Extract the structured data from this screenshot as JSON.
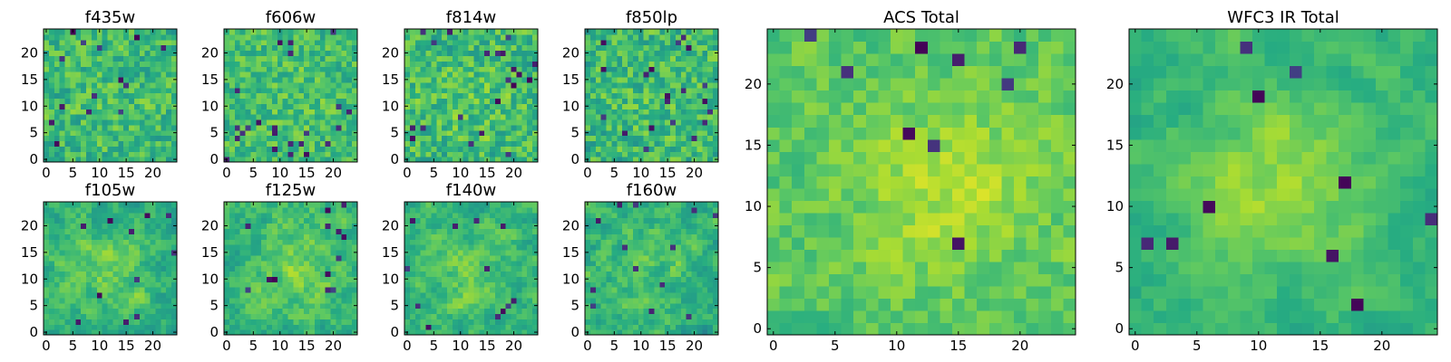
{
  "colormap": {
    "name": "viridis",
    "stops": [
      "#440154",
      "#472c7a",
      "#3b518b",
      "#2c718e",
      "#21908d",
      "#27ad81",
      "#5cc863",
      "#aadc32",
      "#fde725"
    ]
  },
  "chart_data": [
    {
      "type": "heatmap",
      "title": "f435w",
      "x_range": [
        0,
        24
      ],
      "y_range": [
        0,
        24
      ],
      "grid_size": 25,
      "mean": 0.66,
      "spread": 0.17,
      "smooth": 0.15,
      "outlier_rate": 0.035,
      "seed": 11,
      "blob": {
        "center": [
          12,
          11
        ],
        "sigma": 7,
        "amplitude": 0.04
      },
      "xticks": [
        0,
        5,
        10,
        15,
        20
      ],
      "yticks": [
        0,
        5,
        10,
        15,
        20
      ]
    },
    {
      "type": "heatmap",
      "title": "f606w",
      "x_range": [
        0,
        24
      ],
      "y_range": [
        0,
        24
      ],
      "grid_size": 25,
      "mean": 0.68,
      "spread": 0.16,
      "smooth": 0.15,
      "outlier_rate": 0.03,
      "seed": 23,
      "blob": {
        "center": [
          12,
          11
        ],
        "sigma": 7,
        "amplitude": 0.04
      },
      "xticks": [
        0,
        5,
        10,
        15,
        20
      ],
      "yticks": [
        0,
        5,
        10,
        15,
        20
      ]
    },
    {
      "type": "heatmap",
      "title": "f814w",
      "x_range": [
        0,
        24
      ],
      "y_range": [
        0,
        24
      ],
      "grid_size": 25,
      "mean": 0.67,
      "spread": 0.18,
      "smooth": 0.15,
      "outlier_rate": 0.035,
      "seed": 37,
      "blob": {
        "center": [
          12,
          11
        ],
        "sigma": 7,
        "amplitude": 0.05
      },
      "xticks": [
        0,
        5,
        10,
        15,
        20
      ],
      "yticks": [
        0,
        5,
        10,
        15,
        20
      ]
    },
    {
      "type": "heatmap",
      "title": "f850lp",
      "x_range": [
        0,
        24
      ],
      "y_range": [
        0,
        24
      ],
      "grid_size": 25,
      "mean": 0.66,
      "spread": 0.18,
      "smooth": 0.15,
      "outlier_rate": 0.035,
      "seed": 41,
      "blob": {
        "center": [
          12,
          11
        ],
        "sigma": 7,
        "amplitude": 0.04
      },
      "xticks": [
        0,
        5,
        10,
        15,
        20
      ],
      "yticks": [
        0,
        5,
        10,
        15,
        20
      ]
    },
    {
      "type": "heatmap",
      "title": "f105w",
      "x_range": [
        0,
        24
      ],
      "y_range": [
        0,
        24
      ],
      "grid_size": 25,
      "mean": 0.64,
      "spread": 0.16,
      "smooth": 0.55,
      "outlier_rate": 0.02,
      "seed": 53,
      "blob": {
        "center": [
          12,
          12
        ],
        "sigma": 6,
        "amplitude": 0.12
      },
      "xticks": [
        0,
        5,
        10,
        15,
        20
      ],
      "yticks": [
        0,
        5,
        10,
        15,
        20
      ]
    },
    {
      "type": "heatmap",
      "title": "f125w",
      "x_range": [
        0,
        24
      ],
      "y_range": [
        0,
        24
      ],
      "grid_size": 25,
      "mean": 0.66,
      "spread": 0.16,
      "smooth": 0.55,
      "outlier_rate": 0.02,
      "seed": 67,
      "blob": {
        "center": [
          13,
          12
        ],
        "sigma": 6,
        "amplitude": 0.12
      },
      "xticks": [
        0,
        5,
        10,
        15,
        20
      ],
      "yticks": [
        0,
        5,
        10,
        15,
        20
      ]
    },
    {
      "type": "heatmap",
      "title": "f140w",
      "x_range": [
        0,
        24
      ],
      "y_range": [
        0,
        24
      ],
      "grid_size": 25,
      "mean": 0.64,
      "spread": 0.16,
      "smooth": 0.55,
      "outlier_rate": 0.02,
      "seed": 71,
      "blob": {
        "center": [
          12,
          11
        ],
        "sigma": 6,
        "amplitude": 0.12
      },
      "xticks": [
        0,
        5,
        10,
        15,
        20
      ],
      "yticks": [
        0,
        5,
        10,
        15,
        20
      ]
    },
    {
      "type": "heatmap",
      "title": "f160w",
      "x_range": [
        0,
        24
      ],
      "y_range": [
        0,
        24
      ],
      "grid_size": 25,
      "mean": 0.63,
      "spread": 0.17,
      "smooth": 0.55,
      "outlier_rate": 0.025,
      "seed": 83,
      "blob": {
        "center": [
          12,
          12
        ],
        "sigma": 6,
        "amplitude": 0.12
      },
      "xticks": [
        0,
        5,
        10,
        15,
        20
      ],
      "yticks": [
        0,
        5,
        10,
        15,
        20
      ]
    },
    {
      "type": "heatmap",
      "title": "ACS Total",
      "x_range": [
        0,
        24
      ],
      "y_range": [
        0,
        24
      ],
      "grid_size": 25,
      "mean": 0.74,
      "spread": 0.11,
      "smooth": 0.3,
      "outlier_rate": 0.015,
      "seed": 97,
      "blob": {
        "center": [
          14,
          12
        ],
        "sigma": 5,
        "amplitude": 0.14
      },
      "xticks": [
        0,
        5,
        10,
        15,
        20
      ],
      "yticks": [
        0,
        5,
        10,
        15,
        20
      ]
    },
    {
      "type": "heatmap",
      "title": "WFC3 IR Total",
      "x_range": [
        0,
        24
      ],
      "y_range": [
        0,
        24
      ],
      "grid_size": 25,
      "mean": 0.66,
      "spread": 0.11,
      "smooth": 0.6,
      "outlier_rate": 0.015,
      "seed": 101,
      "blob": {
        "center": [
          12,
          12
        ],
        "sigma": 5,
        "amplitude": 0.2
      },
      "xticks": [
        0,
        5,
        10,
        15,
        20
      ],
      "yticks": [
        0,
        5,
        10,
        15,
        20
      ]
    }
  ]
}
